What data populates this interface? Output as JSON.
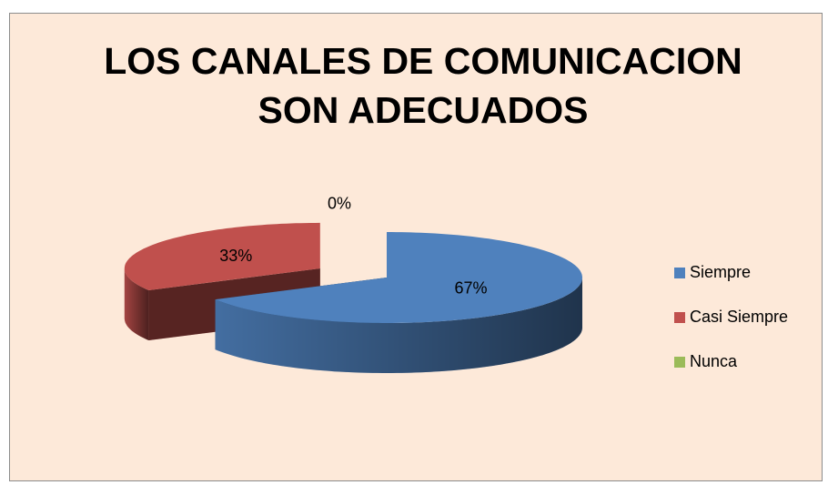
{
  "chart_data": {
    "type": "pie",
    "title": "LOS CANALES DE COMUNICACION SON ADECUADOS",
    "categories": [
      "Siempre",
      "Casi Siempre",
      "Nunca"
    ],
    "values": [
      67,
      33,
      0
    ],
    "value_labels": [
      "67%",
      "33%",
      "0%"
    ],
    "colors": [
      "#4f81bd",
      "#c0504d",
      "#9bbb59"
    ],
    "legend": "right"
  }
}
